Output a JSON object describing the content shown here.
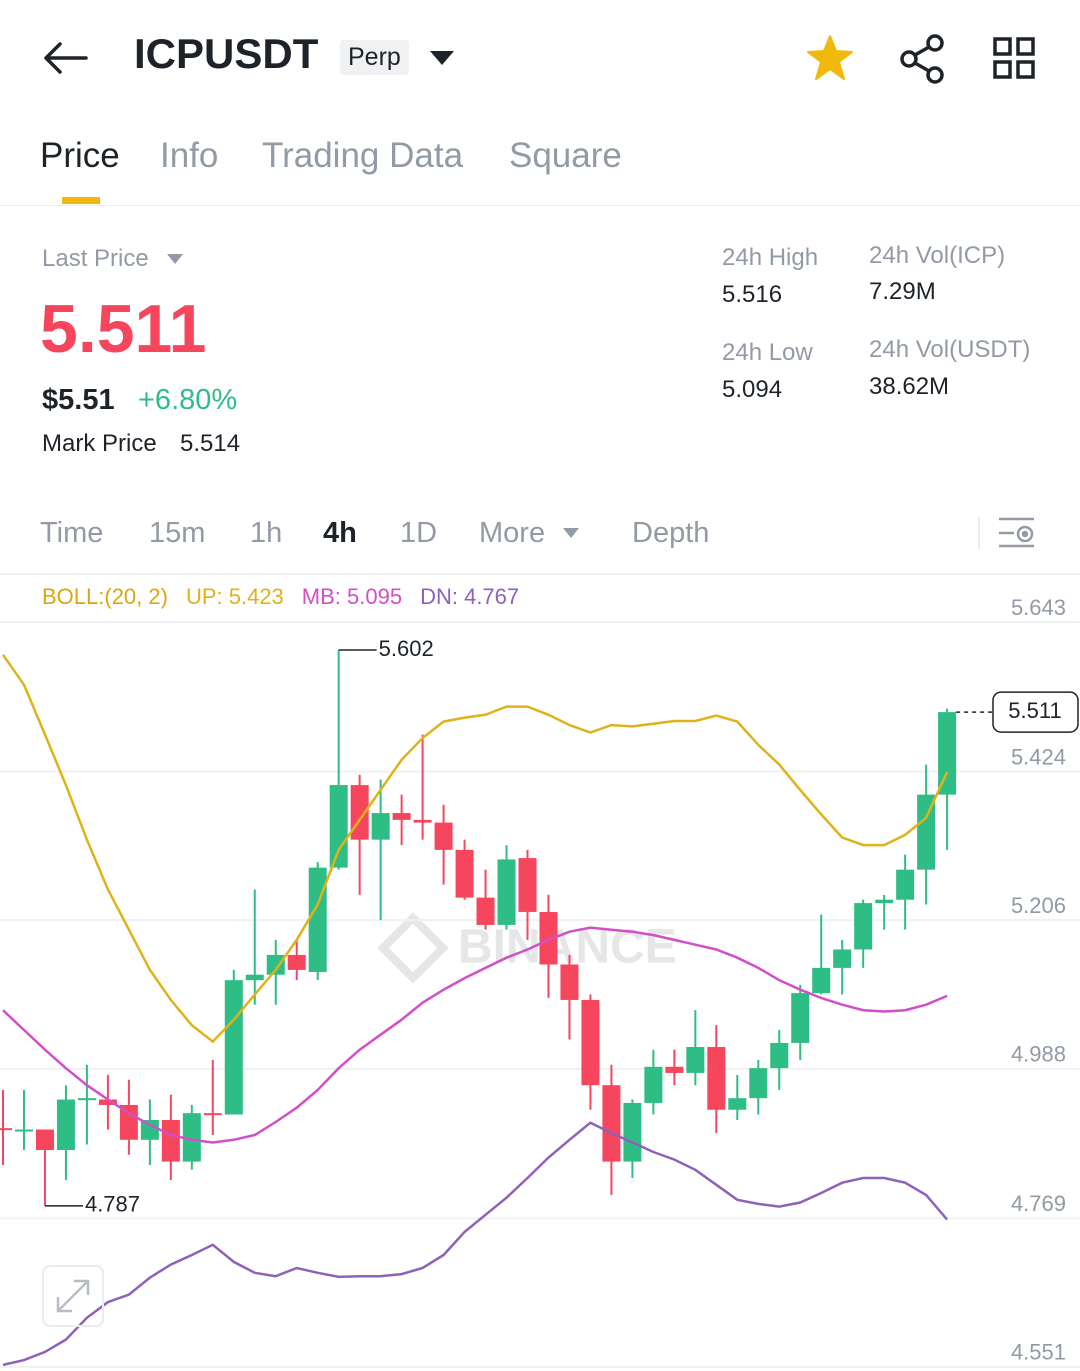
{
  "header": {
    "title": "ICPUSDT",
    "badge": "Perp"
  },
  "tabs": [
    "Price",
    "Info",
    "Trading Data",
    "Square"
  ],
  "stats": {
    "last_price_label": "Last Price",
    "last_price": "5.511",
    "usd_price": "$5.51",
    "change": "+6.80%",
    "mark_price_label": "Mark Price",
    "mark_price": "5.514",
    "high_label": "24h High",
    "high": "5.516",
    "low_label": "24h Low",
    "low": "5.094",
    "vol_icp_label": "24h Vol(ICP)",
    "vol_icp": "7.29M",
    "vol_usdt_label": "24h Vol(USDT)",
    "vol_usdt": "38.62M"
  },
  "intervals": [
    "Time",
    "15m",
    "1h",
    "4h",
    "1D",
    "More",
    "Depth"
  ],
  "chart_data": {
    "type": "candlestick",
    "indicator_label": "BOLL:(20, 2)",
    "watermark": "BINANCE",
    "ylim": [
      4.545,
      5.712
    ],
    "yticks": [
      5.643,
      5.424,
      5.206,
      4.988,
      4.769,
      4.551
    ],
    "grid": true,
    "up_color": "#2ebd85",
    "down_color": "#f6465d",
    "candles": {
      "open": [
        4.901,
        4.899,
        4.899,
        4.869,
        4.943,
        4.943,
        4.935,
        4.884,
        4.913,
        4.852,
        4.923,
        4.921,
        5.118,
        5.126,
        5.155,
        5.13,
        5.283,
        5.404,
        5.324,
        5.363,
        5.353,
        5.349,
        5.309,
        5.239,
        5.199,
        5.297,
        5.218,
        5.141,
        5.089,
        4.964,
        4.852,
        4.938,
        4.991,
        4.982,
        5.02,
        4.928,
        4.945,
        4.989,
        5.026,
        5.099,
        5.136,
        5.163,
        5.231,
        5.236,
        5.28,
        5.39
      ],
      "close": [
        4.899,
        4.899,
        4.869,
        4.943,
        4.945,
        4.935,
        4.884,
        4.913,
        4.852,
        4.923,
        4.921,
        5.118,
        5.126,
        5.155,
        5.133,
        5.283,
        5.404,
        5.324,
        5.363,
        5.353,
        5.349,
        5.309,
        5.239,
        5.199,
        5.295,
        5.218,
        5.141,
        5.089,
        4.964,
        4.852,
        4.938,
        4.991,
        4.982,
        5.02,
        4.928,
        4.945,
        4.989,
        5.026,
        5.099,
        5.136,
        5.163,
        5.231,
        5.236,
        5.28,
        5.39,
        5.511
      ],
      "high": [
        4.957,
        4.957,
        4.899,
        4.964,
        4.994,
        4.979,
        4.972,
        4.943,
        4.95,
        4.935,
        5.001,
        5.133,
        5.251,
        5.177,
        5.177,
        5.291,
        5.602,
        5.419,
        5.412,
        5.39,
        5.478,
        5.375,
        5.324,
        5.28,
        5.316,
        5.309,
        5.243,
        5.155,
        5.097,
        4.994,
        4.943,
        5.016,
        5.016,
        5.074,
        5.052,
        4.979,
        5.001,
        5.045,
        5.111,
        5.214,
        5.177,
        5.236,
        5.243,
        5.302,
        5.434,
        5.516
      ],
      "low": [
        4.847,
        4.869,
        4.787,
        4.825,
        4.877,
        4.899,
        4.862,
        4.847,
        4.825,
        4.84,
        4.891,
        4.921,
        5.082,
        5.082,
        5.118,
        5.118,
        5.28,
        5.243,
        5.206,
        5.316,
        5.324,
        5.258,
        5.236,
        5.192,
        5.192,
        5.177,
        5.092,
        5.031,
        4.928,
        4.803,
        4.828,
        4.921,
        4.964,
        4.964,
        4.894,
        4.913,
        4.921,
        4.957,
        5.001,
        5.097,
        5.097,
        5.136,
        5.192,
        5.192,
        5.229,
        5.309
      ]
    },
    "series": [
      {
        "name": "UP: 5.423",
        "color": "#e0b21a",
        "values": [
          5.595,
          5.551,
          5.478,
          5.404,
          5.324,
          5.251,
          5.192,
          5.133,
          5.089,
          5.052,
          5.028,
          5.06,
          5.097,
          5.133,
          5.177,
          5.229,
          5.309,
          5.353,
          5.397,
          5.441,
          5.473,
          5.497,
          5.503,
          5.507,
          5.519,
          5.519,
          5.507,
          5.492,
          5.481,
          5.492,
          5.49,
          5.494,
          5.498,
          5.498,
          5.506,
          5.497,
          5.463,
          5.434,
          5.397,
          5.361,
          5.327,
          5.316,
          5.316,
          5.331,
          5.356,
          5.423
        ]
      },
      {
        "name": "MB: 5.095",
        "color": "#d24fc8",
        "values": [
          5.074,
          5.045,
          5.016,
          4.989,
          4.964,
          4.943,
          4.923,
          4.906,
          4.891,
          4.884,
          4.88,
          4.884,
          4.891,
          4.91,
          4.931,
          4.957,
          4.989,
          5.016,
          5.038,
          5.06,
          5.085,
          5.104,
          5.121,
          5.136,
          5.151,
          5.163,
          5.177,
          5.189,
          5.195,
          5.192,
          5.189,
          5.184,
          5.177,
          5.17,
          5.163,
          5.151,
          5.136,
          5.118,
          5.104,
          5.092,
          5.082,
          5.074,
          5.072,
          5.074,
          5.082,
          5.095
        ]
      },
      {
        "name": "DN: 4.767",
        "color": "#8e62b8",
        "values": [
          4.554,
          4.561,
          4.573,
          4.591,
          4.623,
          4.646,
          4.657,
          4.682,
          4.701,
          4.715,
          4.73,
          4.705,
          4.689,
          4.684,
          4.696,
          4.689,
          4.683,
          4.684,
          4.684,
          4.687,
          4.696,
          4.715,
          4.749,
          4.774,
          4.799,
          4.828,
          4.858,
          4.884,
          4.909,
          4.894,
          4.88,
          4.866,
          4.855,
          4.84,
          4.818,
          4.796,
          4.79,
          4.786,
          4.792,
          4.806,
          4.821,
          4.828,
          4.828,
          4.821,
          4.803,
          4.767
        ]
      }
    ]
  }
}
